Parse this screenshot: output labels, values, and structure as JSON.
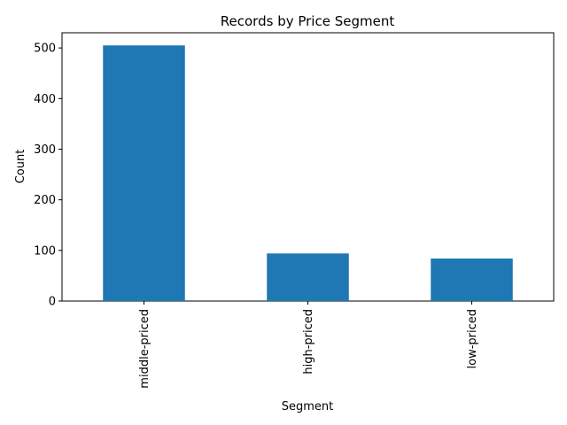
{
  "chart_data": {
    "type": "bar",
    "title": "Records by Price Segment",
    "xlabel": "Segment",
    "ylabel": "Count",
    "categories": [
      "middle-priced",
      "high-priced",
      "low-priced"
    ],
    "values": [
      505,
      94,
      84
    ],
    "ylim": [
      0,
      530
    ],
    "yticks": [
      0,
      100,
      200,
      300,
      400,
      500
    ],
    "bar_color": "#1f77b4",
    "grid": false,
    "x_tick_rotation_deg": 90
  }
}
